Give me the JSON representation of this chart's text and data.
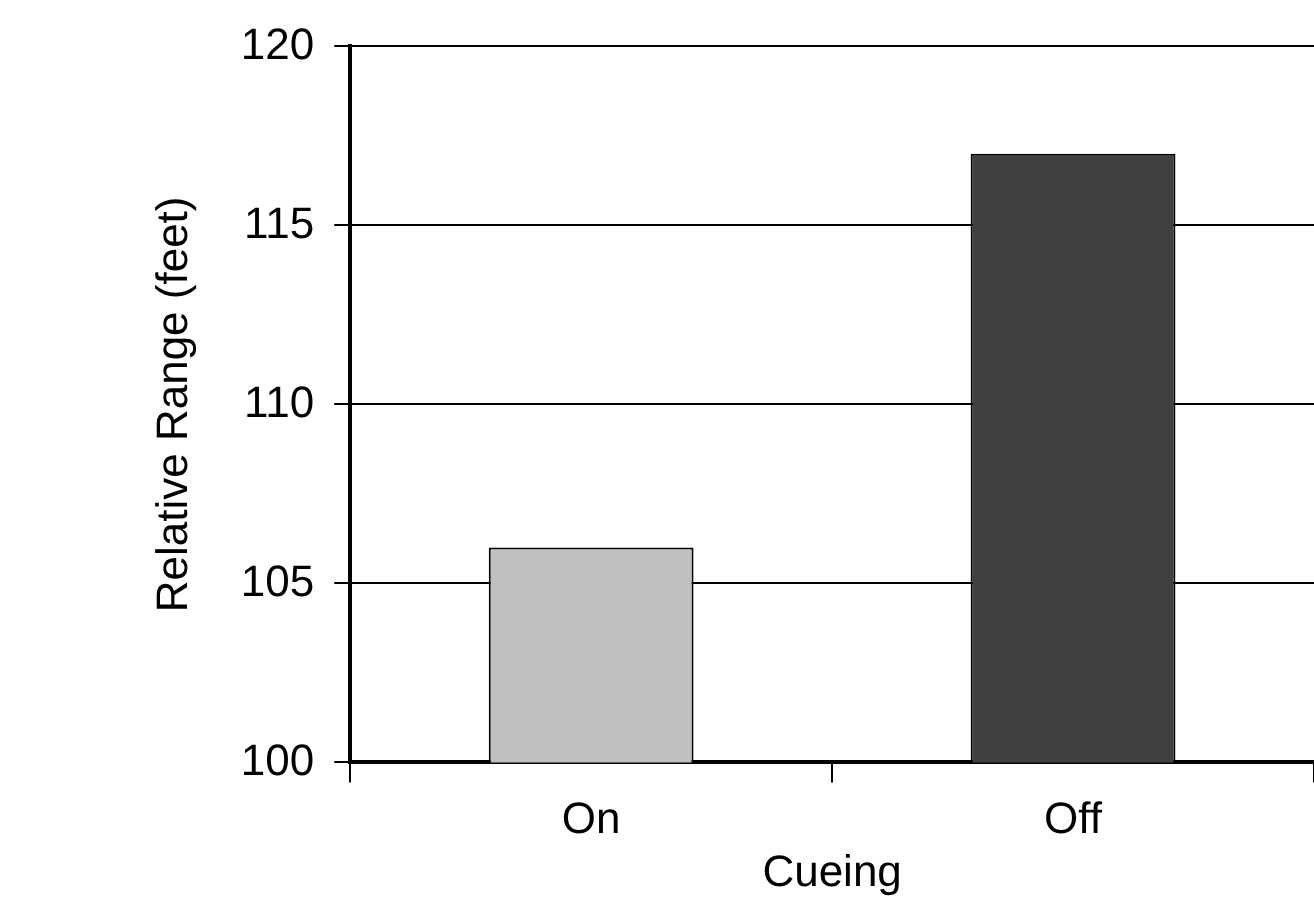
{
  "chart_data": {
    "type": "bar",
    "xlabel": "Cueing",
    "ylabel": "Relative Range (feet)",
    "categories": [
      "On",
      "Off"
    ],
    "values": [
      106,
      117
    ],
    "colors": [
      "#c0c0c0",
      "#404040"
    ],
    "ylim": [
      100,
      120
    ],
    "yticks": [
      100,
      105,
      110,
      115,
      120
    ],
    "grid": "y"
  }
}
